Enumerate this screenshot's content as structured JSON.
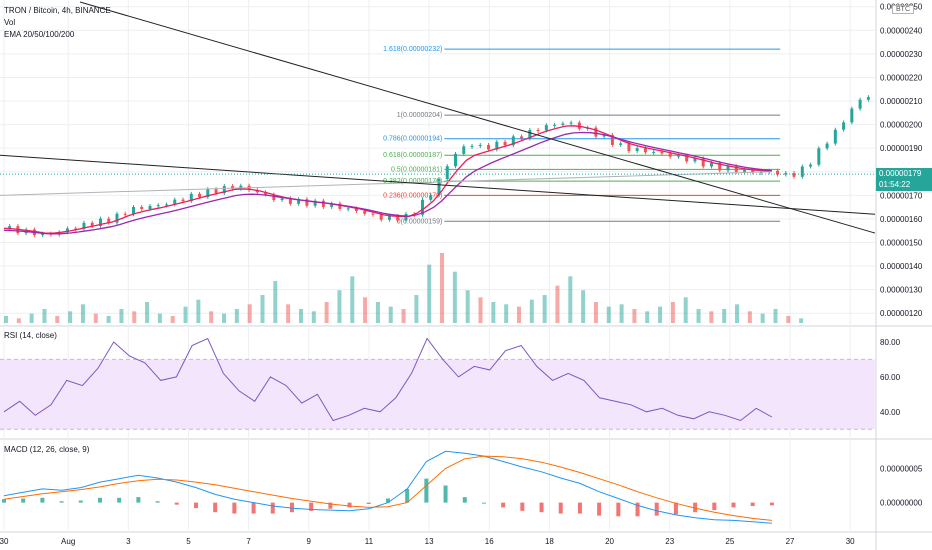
{
  "header": {
    "symbol_line": "TRON / Bitcoin, 4h, BINANCE",
    "volume_label": "Vol",
    "ema_label": "EMA 20/50/100/200",
    "currency_tag": "BTC"
  },
  "current_price": {
    "value": "0.00000179",
    "countdown": "01:54:22",
    "color": "#26a69a"
  },
  "colors": {
    "up": "#26a69a",
    "down": "#ef5350",
    "ema_fast": "#e91e63",
    "ema_slow": "#9c27b0",
    "rsi_line": "#7e57c2",
    "rsi_band": "#f3e5fb",
    "macd_line": "#2196f3",
    "signal_line": "#ff6d00",
    "trendline": "#222222",
    "grid": "#eceff2"
  },
  "price_axis": {
    "ticks": [
      "0.00000250",
      "0.00000240",
      "0.00000230",
      "0.00000220",
      "0.00000210",
      "0.00000200",
      "0.00000190",
      "0.00000180",
      "0.00000170",
      "0.00000160",
      "0.00000150",
      "0.00000140",
      "0.00000130",
      "0.00000120"
    ]
  },
  "rsi_axis": {
    "ticks": [
      "80.00",
      "60.00",
      "40.00"
    ]
  },
  "macd_axis": {
    "ticks": [
      "0.00000005",
      "0.00000000"
    ]
  },
  "time_axis": {
    "ticks": [
      "30",
      "Aug",
      "3",
      "5",
      "7",
      "9",
      "11",
      "13",
      "16",
      "18",
      "20",
      "23",
      "25",
      "27",
      "30"
    ]
  },
  "fib_levels": [
    {
      "label": "1.618(0.00000232)",
      "price": 2.32e-06,
      "color": "#2196f3"
    },
    {
      "label": "1(0.00000204)",
      "price": 2.04e-06,
      "color": "#787b86"
    },
    {
      "label": "0.786(0.00000194)",
      "price": 1.94e-06,
      "color": "#2196f3"
    },
    {
      "label": "0.618(0.00000187)",
      "price": 1.87e-06,
      "color": "#4caf50"
    },
    {
      "label": "0.5(0.00000181)",
      "price": 1.81e-06,
      "color": "#4caf50"
    },
    {
      "label": "0.382(0.00000176)",
      "price": 1.76e-06,
      "color": "#4caf50"
    },
    {
      "label": "0.236(0.00000170)",
      "price": 1.7e-06,
      "color": "#f44336"
    },
    {
      "label": "0(0.00000159)",
      "price": 1.59e-06,
      "color": "#787b86"
    }
  ],
  "pane_labels": {
    "rsi": "RSI (14, close)",
    "macd": "MACD (12, 26, close, 9)"
  },
  "chart_data": {
    "type": "line",
    "title": "TRON / Bitcoin, 4h, BINANCE",
    "ylim": [
      1.15e-06,
      2.52e-06
    ],
    "price_path": [
      [
        0,
        1.56e-06
      ],
      [
        10,
        1.53e-06
      ],
      [
        18,
        1.57e-06
      ],
      [
        26,
        1.6e-06
      ],
      [
        30,
        1.64e-06
      ],
      [
        38,
        1.66e-06
      ],
      [
        48,
        1.71e-06
      ],
      [
        56,
        1.74e-06
      ],
      [
        60,
        1.72e-06
      ],
      [
        66,
        1.68e-06
      ],
      [
        72,
        1.67e-06
      ],
      [
        78,
        1.66e-06
      ],
      [
        86,
        1.63e-06
      ],
      [
        92,
        1.6e-06
      ],
      [
        98,
        1.61e-06
      ],
      [
        104,
        1.73e-06
      ],
      [
        108,
        1.86e-06
      ],
      [
        112,
        1.92e-06
      ],
      [
        116,
        1.9e-06
      ],
      [
        122,
        1.93e-06
      ],
      [
        130,
        1.99e-06
      ],
      [
        136,
        2.01e-06
      ],
      [
        142,
        1.97e-06
      ],
      [
        150,
        1.9e-06
      ],
      [
        158,
        1.88e-06
      ],
      [
        166,
        1.85e-06
      ],
      [
        172,
        1.82e-06
      ],
      [
        180,
        1.8e-06
      ],
      [
        186,
        1.8e-06
      ],
      [
        190,
        1.78e-06
      ],
      [
        194,
        1.82e-06
      ],
      [
        198,
        1.91e-06
      ],
      [
        202,
        1.99e-06
      ],
      [
        206,
        2.09e-06
      ],
      [
        208,
        2.12e-06
      ]
    ],
    "projection_index_start": 190,
    "volume": [
      3,
      2,
      4,
      6,
      3,
      5,
      8,
      4,
      3,
      6,
      5,
      9,
      4,
      3,
      7,
      10,
      5,
      4,
      6,
      8,
      12,
      18,
      8,
      6,
      5,
      9,
      14,
      20,
      11,
      9,
      7,
      6,
      12,
      25,
      30,
      22,
      14,
      11,
      9,
      8,
      7,
      10,
      12,
      16,
      20,
      14,
      9,
      7,
      8,
      6,
      5,
      7,
      9,
      11,
      6,
      5,
      6,
      8,
      5,
      4,
      6,
      3,
      2
    ],
    "rsi": [
      40,
      46,
      38,
      44,
      58,
      55,
      65,
      80,
      72,
      68,
      58,
      60,
      78,
      82,
      62,
      52,
      46,
      60,
      55,
      45,
      50,
      35,
      38,
      42,
      40,
      48,
      62,
      82,
      70,
      60,
      66,
      64,
      75,
      78,
      66,
      58,
      62,
      58,
      48,
      46,
      44,
      40,
      42,
      38,
      36,
      40,
      38,
      35,
      42,
      37
    ],
    "rsi_band": [
      30,
      70
    ],
    "macd": [
      1,
      1.5,
      2,
      1.8,
      2.2,
      3,
      3.5,
      4,
      3.6,
      3,
      2.2,
      1.2,
      0.5,
      0,
      -0.5,
      -0.8,
      -1,
      -1.1,
      -1.2,
      -0.9,
      0,
      2,
      6,
      7.5,
      7.2,
      6.8,
      6,
      5.2,
      4.5,
      3.6,
      2.8,
      1.6,
      0.6,
      -0.4,
      -1.2,
      -1.8,
      -2.2,
      -2.5,
      -2.6,
      -2.8,
      -3
    ],
    "signal": [
      0.5,
      0.9,
      1.3,
      1.6,
      1.9,
      2.3,
      2.8,
      3.2,
      3.4,
      3.3,
      3,
      2.6,
      2.1,
      1.6,
      1.1,
      0.6,
      0.2,
      -0.2,
      -0.5,
      -0.7,
      -0.6,
      0,
      2.5,
      5,
      6.4,
      6.8,
      6.7,
      6.4,
      5.9,
      5.2,
      4.4,
      3.5,
      2.6,
      1.6,
      0.7,
      -0.1,
      -0.8,
      -1.4,
      -1.9,
      -2.3,
      -2.6
    ],
    "histogram": [
      0.5,
      0.6,
      0.7,
      0.2,
      0.3,
      0.7,
      0.7,
      0.8,
      0.2,
      -0.3,
      -0.8,
      -1.4,
      -1.6,
      -1.6,
      -1.6,
      -1.4,
      -1.2,
      -0.9,
      -0.7,
      -0.2,
      0.6,
      2,
      3.5,
      2.5,
      0.8,
      0,
      -0.7,
      -1.2,
      -1.4,
      -1.6,
      -1.6,
      -1.9,
      -2,
      -2,
      -1.9,
      -1.7,
      -1.4,
      -1.1,
      -0.7,
      -0.5,
      -0.4
    ]
  }
}
